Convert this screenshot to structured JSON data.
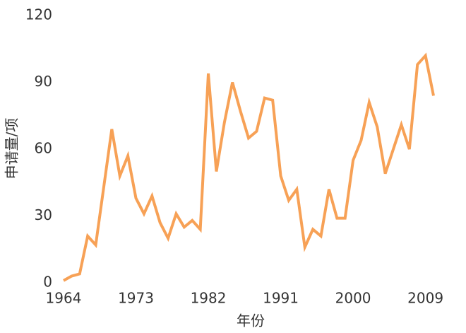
{
  "chart_data": {
    "type": "line",
    "xlabel": "年份",
    "ylabel": "申请量/项",
    "x": [
      1964,
      1965,
      1966,
      1967,
      1968,
      1969,
      1970,
      1971,
      1972,
      1973,
      1974,
      1975,
      1976,
      1977,
      1978,
      1979,
      1980,
      1981,
      1982,
      1983,
      1984,
      1985,
      1986,
      1987,
      1988,
      1989,
      1990,
      1991,
      1992,
      1993,
      1994,
      1995,
      1996,
      1997,
      1998,
      1999,
      2000,
      2001,
      2002,
      2003,
      2004,
      2005,
      2006,
      2007,
      2008,
      2009,
      2010
    ],
    "series": [
      {
        "color": "#f7a156",
        "values": [
          1,
          3,
          4,
          21,
          17,
          43,
          69,
          48,
          57,
          38,
          31,
          39,
          27,
          20,
          31,
          25,
          28,
          24,
          94,
          50,
          72,
          90,
          77,
          65,
          68,
          83,
          82,
          48,
          37,
          42,
          16,
          24,
          21,
          42,
          29,
          29,
          55,
          64,
          81,
          70,
          49,
          60,
          71,
          60,
          98,
          102,
          84
        ]
      }
    ],
    "xlim": [
      1964,
      2010
    ],
    "xticks": [
      1964,
      1973,
      1982,
      1991,
      2000,
      2009
    ],
    "ylim": [
      0,
      120
    ],
    "yticks": [
      0,
      30,
      60,
      90,
      120
    ],
    "grid": false
  }
}
